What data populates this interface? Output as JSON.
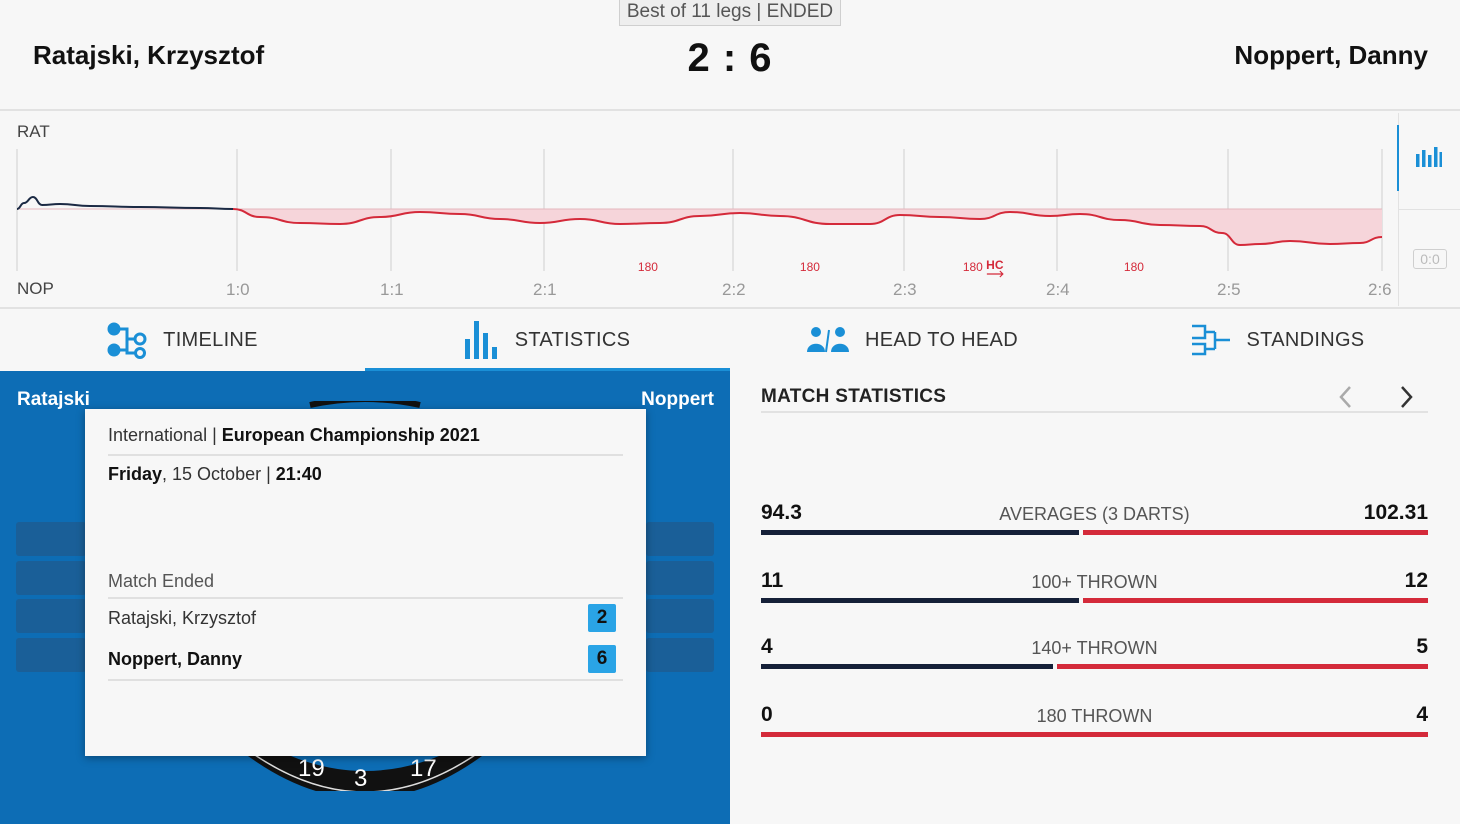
{
  "header": {
    "format": "Best of 11 legs | ENDED",
    "player_home": "Ratajski, Krzysztof",
    "player_away": "Noppert, Danny",
    "score": "2 : 6"
  },
  "momentum": {
    "top_label": "RAT",
    "bottom_label": "NOP",
    "leg_scores": [
      "1:0",
      "1:1",
      "2:1",
      "2:2",
      "2:3",
      "2:4",
      "2:5",
      "2:6"
    ],
    "markers": [
      {
        "text": "180",
        "leg_index": 3.55
      },
      {
        "text": "180",
        "leg_index": 4.45
      },
      {
        "text": "180",
        "leg_index": 5.45,
        "extra": "HC"
      },
      {
        "text": "180",
        "leg_index": 6.45
      }
    ],
    "zoom_text": "0:0",
    "colors": {
      "home": "#1b2a44",
      "away": "#d42a3a",
      "fill": "#f6d5da"
    }
  },
  "tabs": [
    {
      "label": "TIMELINE",
      "icon": "timeline-icon",
      "active": false
    },
    {
      "label": "STATISTICS",
      "icon": "statistics-icon",
      "active": true
    },
    {
      "label": "HEAD TO HEAD",
      "icon": "head-to-head-icon",
      "active": false
    },
    {
      "label": "STANDINGS",
      "icon": "standings-icon",
      "active": false
    }
  ],
  "board": {
    "home_short": "Ratajski",
    "away_short": "Noppert",
    "numbers": [
      "19",
      "3",
      "17"
    ]
  },
  "info_card": {
    "category": "International",
    "tournament": "European Championship 2021",
    "day": "Friday",
    "date": ", 15 October | ",
    "time": "21:40",
    "status": "Match Ended",
    "home_name": "Ratajski, Krzysztof",
    "home_legs": "2",
    "away_name": "Noppert, Danny",
    "away_legs": "6"
  },
  "match_statistics": {
    "title": "MATCH STATISTICS",
    "rows": [
      {
        "label": "AVERAGES (3 DARTS)",
        "home": "94.3",
        "away": "102.31",
        "home_share": 0.48
      },
      {
        "label": "100+ THROWN",
        "home": "11",
        "away": "12",
        "home_share": 0.48
      },
      {
        "label": "140+ THROWN",
        "home": "4",
        "away": "5",
        "home_share": 0.44
      },
      {
        "label": "180 THROWN",
        "home": "0",
        "away": "4",
        "home_share": 0.0
      }
    ]
  }
}
